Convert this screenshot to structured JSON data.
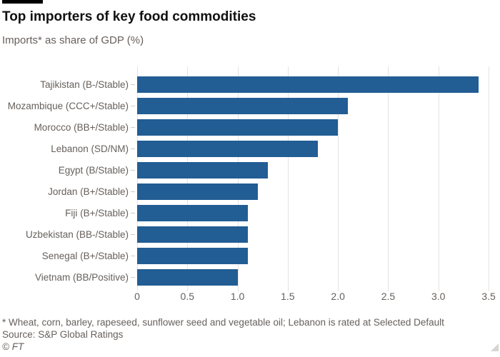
{
  "header": {
    "title": "Top importers of key food commodities",
    "subtitle": "Imports* as share of GDP (%)"
  },
  "chart_data": {
    "type": "bar",
    "orientation": "horizontal",
    "title": "Top importers of key food commodities",
    "subtitle": "Imports* as share of GDP (%)",
    "categories": [
      "Tajikistan (B-/Stable)",
      "Mozambique (CCC+/Stable)",
      "Morocco (BB+/Stable)",
      "Lebanon (SD/NM)",
      "Egypt (B/Stable)",
      "Jordan (B+/Stable)",
      "Fiji (B+/Stable)",
      "Uzbekistan (BB-/Stable)",
      "Senegal (B+/Stable)",
      "Vietnam (BB/Positive)"
    ],
    "values": [
      3.4,
      2.1,
      2.0,
      1.8,
      1.3,
      1.2,
      1.1,
      1.1,
      1.1,
      1.0
    ],
    "xlabel": "",
    "ylabel": "",
    "xlim": [
      0,
      3.5
    ],
    "xticks": [
      0,
      0.5,
      1.0,
      1.5,
      2.0,
      2.5,
      3.0,
      3.5
    ],
    "xtick_labels": [
      "0",
      "0.5",
      "1.0",
      "1.5",
      "2.0",
      "2.5",
      "3.0",
      "3.5"
    ],
    "grid": "vertical-only",
    "legend": "none"
  },
  "footer": {
    "note": "* Wheat, corn, barley, rapeseed, sunflower seed and vegetable oil; Lebanon is rated at Selected Default",
    "source": "Source: S&P Global Ratings",
    "credit": "© FT"
  },
  "colors": {
    "bar": "#225d94",
    "grid": "#e5e3e1",
    "axis_tick": "#cfcbc7",
    "text_muted": "#66605c",
    "title_text": "#111111",
    "accent_bar": "#000000",
    "resize_grip": "#d8d5d1",
    "background": "#ffffff"
  }
}
